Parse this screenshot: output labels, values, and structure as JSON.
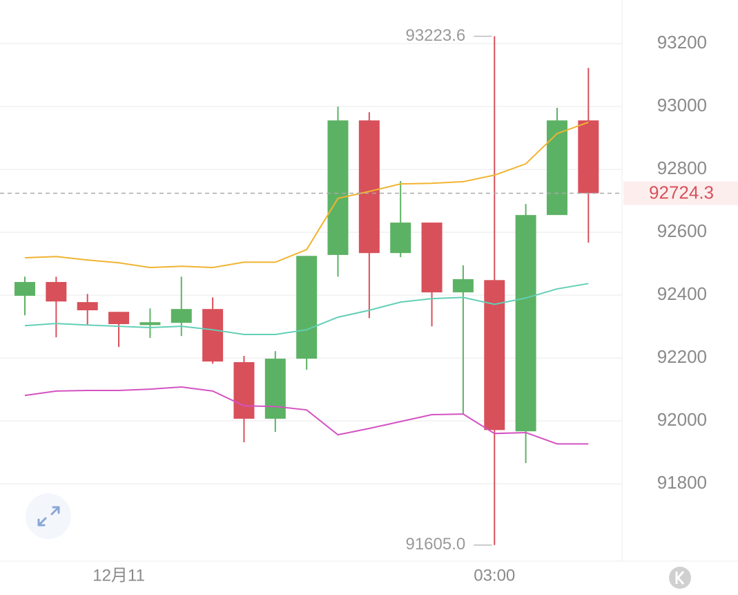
{
  "chart_data": {
    "type": "candlestick",
    "categories": [
      null,
      null,
      null,
      "12月11",
      null,
      null,
      null,
      null,
      null,
      null,
      null,
      null,
      null,
      null,
      null,
      "03:00",
      null,
      null,
      null
    ],
    "open": [
      92398,
      92442,
      92378,
      92347,
      92305,
      92312,
      92356,
      92187,
      92007,
      92198,
      92528,
      92956,
      92534,
      92631,
      92409,
      92448,
      91967,
      92655,
      92956
    ],
    "high": [
      92459,
      92459,
      92404,
      92347,
      92358,
      92459,
      92393,
      92207,
      92222,
      92525,
      93000,
      92982,
      92763,
      92631,
      92495,
      93223.6,
      92690,
      92996,
      93123
    ],
    "low": [
      92336,
      92266,
      92305,
      92235,
      92264,
      92270,
      92182,
      91932,
      91965,
      92163,
      92459,
      92327,
      92521,
      92301,
      92020,
      91605.0,
      91866,
      92655,
      92567
    ],
    "close": [
      92442,
      92380,
      92352,
      92308,
      92314,
      92356,
      92189,
      92007,
      92198,
      92525,
      92956,
      92534,
      92631,
      92409,
      92451,
      91971,
      92655,
      92956,
      92724.3
    ],
    "up_color": "#5cb264",
    "down_color": "#d8505a",
    "overlays": [
      {
        "color": "#f0b430",
        "values": [
          92519,
          92523,
          92512,
          92503,
          92488,
          92492,
          92488,
          92505,
          92505,
          92545,
          92708,
          92730,
          92754,
          92756,
          92761,
          92782,
          92818,
          92914,
          92950
        ]
      },
      {
        "color": "#62cfb6",
        "values": [
          92303,
          92310,
          92305,
          92301,
          92297,
          92301,
          92290,
          92275,
          92275,
          92290,
          92330,
          92352,
          92378,
          92389,
          92393,
          92371,
          92391,
          92420,
          92437
        ]
      },
      {
        "color": "#d452c2",
        "values": [
          92081,
          92095,
          92097,
          92097,
          92101,
          92108,
          92095,
          92048,
          92046,
          92035,
          91956,
          91976,
          91998,
          92020,
          92022,
          91960,
          91963,
          91927,
          91927
        ]
      }
    ],
    "ylim": [
      91554,
      93339
    ],
    "yticks": [
      91800,
      92000,
      92200,
      92400,
      92600,
      92800,
      93000,
      93200
    ],
    "grid": true,
    "high_label": "93223.6",
    "low_label": "91605.0",
    "last_price_label": "92724.3"
  }
}
